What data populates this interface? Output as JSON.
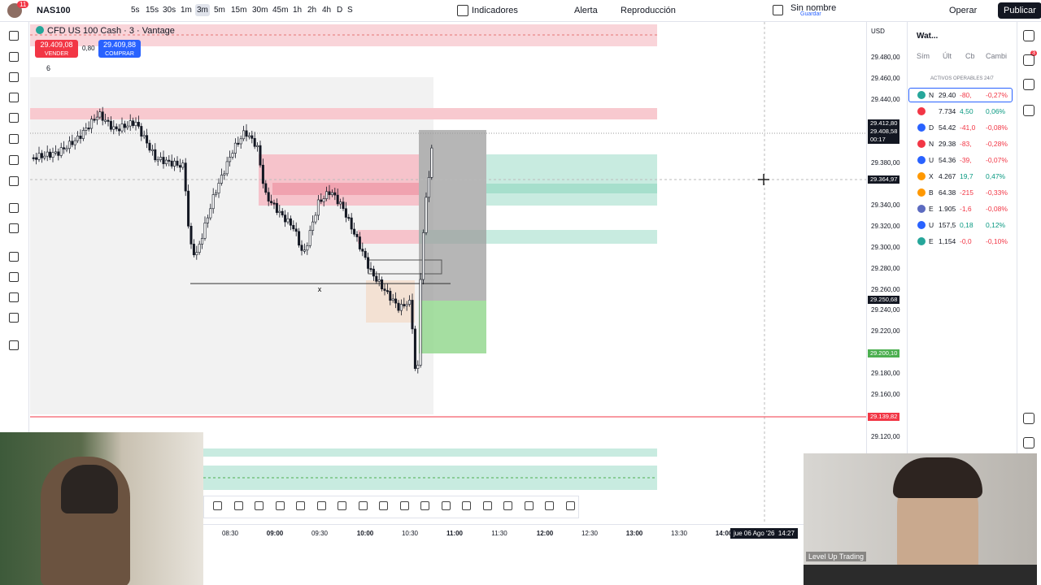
{
  "toolbar": {
    "notifications": "11",
    "symbol": "NAS100",
    "intervals": [
      "5s",
      "15s",
      "30s",
      "1m",
      "3m",
      "5m",
      "15m",
      "30m",
      "45m",
      "1h",
      "2h",
      "4h",
      "D",
      "S"
    ],
    "indicators": "Indicadores",
    "alert": "Alerta",
    "replay": "Reproducción",
    "layout_name": "Sin nombre",
    "layout_status": "Guardar",
    "trade": "Operar",
    "publish": "Publicar"
  },
  "legend": {
    "title": "CFD US 100 Cash · 3 · Vantage",
    "sell_price": "29.409,08",
    "sell_label": "VENDER",
    "spread": "0,80",
    "buy_price": "29.409,88",
    "buy_label": "COMPRAR",
    "indicator_count": "6"
  },
  "chart": {
    "marker": "x"
  },
  "price_axis": {
    "currency": "USD",
    "labels": [
      "29.480,00",
      "29.460,00",
      "29.440,00",
      "29.380,00",
      "29.340,00",
      "29.320,00",
      "29.300,00",
      "29.280,00",
      "29.260,00",
      "29.240,00",
      "29.220,00",
      "29.180,00",
      "29.160,00",
      "29.120,00"
    ],
    "tags": [
      {
        "lines": [
          "29.412,80",
          "29.408,58",
          "00:17"
        ],
        "color": "#131722"
      },
      {
        "lines": [
          "29.364,97"
        ],
        "color": "#131722"
      },
      {
        "lines": [
          "29.250,68"
        ],
        "color": "#131722"
      },
      {
        "lines": [
          "29.200,10"
        ],
        "color": "#4caf50"
      },
      {
        "lines": [
          "29.139,82"
        ],
        "color": "#f23645"
      }
    ]
  },
  "time_axis": {
    "labels": [
      "08:30",
      "09:00",
      "09:30",
      "10:00",
      "10:30",
      "11:00",
      "11:30",
      "12:00",
      "12:30",
      "13:00",
      "13:30",
      "14:00"
    ],
    "cursor_date": "jue 06 Ago '26",
    "cursor_time": "14:27"
  },
  "watchlist": {
    "title": "Wat...",
    "columns": [
      "Sím",
      "Últ",
      "Cb",
      "Cambi"
    ],
    "section": "ACTIVOS OPERABLES 24/7",
    "rows": [
      [
        "N",
        "29.40",
        "-80,",
        "-0,27%"
      ],
      [
        "",
        "7.734",
        "4,50",
        "0,06%"
      ],
      [
        "D",
        "54.42",
        "-41,0",
        "-0,08%"
      ],
      [
        "N",
        "29.38",
        "-83,",
        "-0,28%"
      ],
      [
        "U",
        "54.36",
        "-39,",
        "-0,07%"
      ],
      [
        "X",
        "4.267",
        "19,7",
        "0,47%"
      ],
      [
        "B",
        "64.38",
        "-215",
        "-0,33%"
      ],
      [
        "E",
        "1.905",
        "-1,6",
        "-0,08%"
      ],
      [
        "U",
        "157,5",
        "0,18",
        "0,12%"
      ],
      [
        "E",
        "1,154",
        "-0,0",
        "-0,10%"
      ]
    ]
  },
  "sidebar": {
    "badge": "3"
  },
  "webcam": {
    "caption": "Level Up Trading"
  }
}
